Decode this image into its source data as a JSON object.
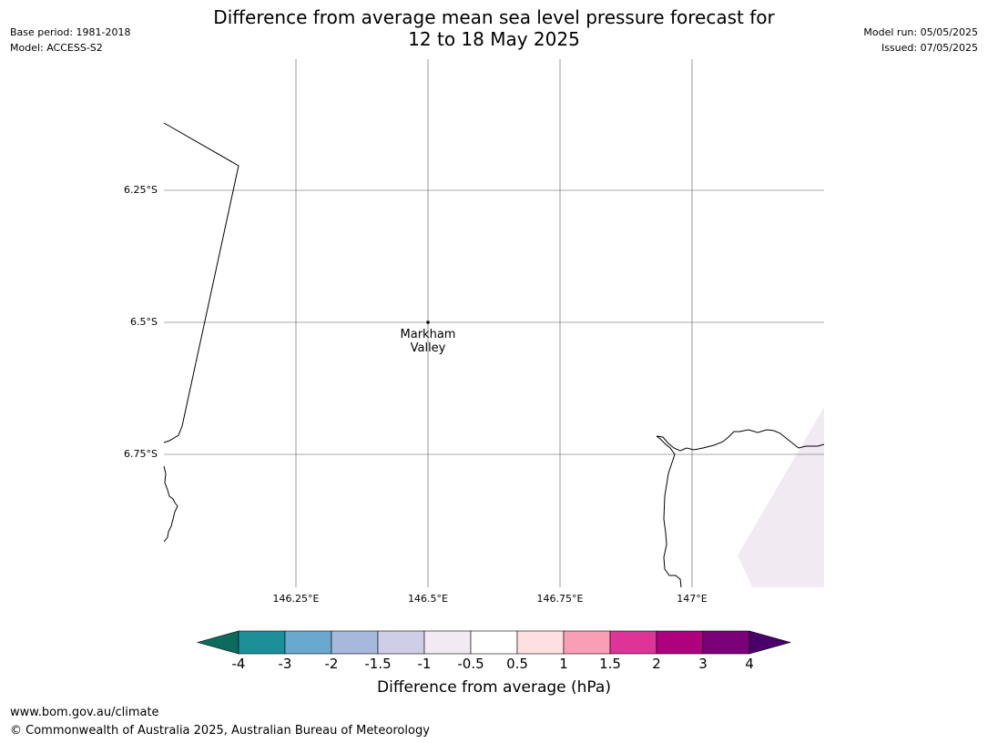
{
  "title": {
    "line1": "Difference from average mean sea level pressure forecast for",
    "line2": "12 to 18 May 2025"
  },
  "meta_left": {
    "base_period": "Base period: 1981-2018",
    "model": "Model: ACCESS-S2"
  },
  "meta_right": {
    "model_run": "Model run: 05/05/2025",
    "issued": "Issued: 07/05/2025"
  },
  "map": {
    "lat_labels": [
      "6.25°S",
      "6.5°S",
      "6.75°S"
    ],
    "lon_labels": [
      "146.25°E",
      "146.5°E",
      "146.75°E",
      "147°E"
    ],
    "place": {
      "line1": "Markham",
      "line2": "Valley"
    }
  },
  "colorbar": {
    "label": "Difference from average (hPa)",
    "ticks": [
      "-4",
      "-3",
      "-2",
      "-1.5",
      "-1",
      "-0.5",
      "0.5",
      "1",
      "1.5",
      "2",
      "3",
      "4"
    ],
    "colors": [
      "#1b9098",
      "#69a8cf",
      "#a6b9dc",
      "#d0cde6",
      "#f1eaf3",
      "#ffffff",
      "#fee0e0",
      "#f89fb5",
      "#dd3497",
      "#ae017e",
      "#7a0177"
    ],
    "under_color": "#0c6b5c",
    "over_color": "#49006a"
  },
  "footer": {
    "url": "www.bom.gov.au/climate",
    "copyright": "© Commonwealth of Australia 2025, Australian Bureau of Meteorology"
  }
}
